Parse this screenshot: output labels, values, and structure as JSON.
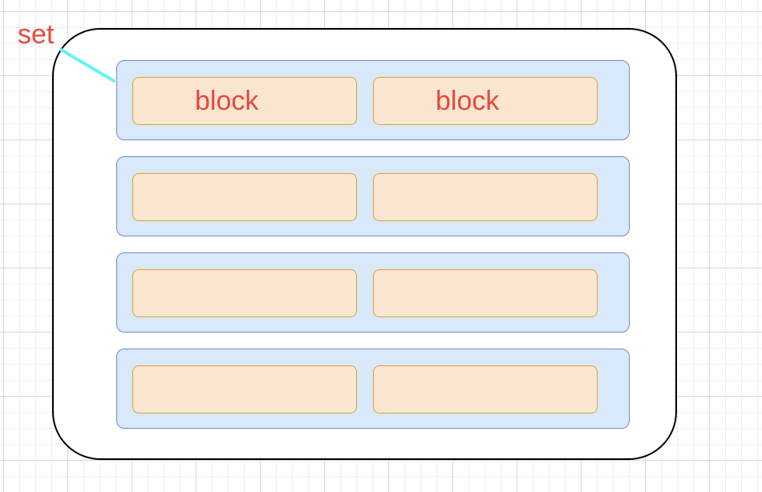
{
  "labels": {
    "set": "set",
    "block": "block"
  },
  "colors": {
    "label_text": "#e9473c",
    "connector": "#66f2f2",
    "row_fill": "#dae8fc",
    "row_stroke": "#6c8ebf",
    "block_fill": "#fae6d0",
    "block_stroke": "#d6a530",
    "set_stroke": "#000000"
  },
  "rows": [
    {
      "blocks": [
        {
          "label": "block"
        },
        {
          "label": "block"
        }
      ]
    },
    {
      "blocks": [
        {
          "label": ""
        },
        {
          "label": ""
        }
      ]
    },
    {
      "blocks": [
        {
          "label": ""
        },
        {
          "label": ""
        }
      ]
    },
    {
      "blocks": [
        {
          "label": ""
        },
        {
          "label": ""
        }
      ]
    }
  ]
}
